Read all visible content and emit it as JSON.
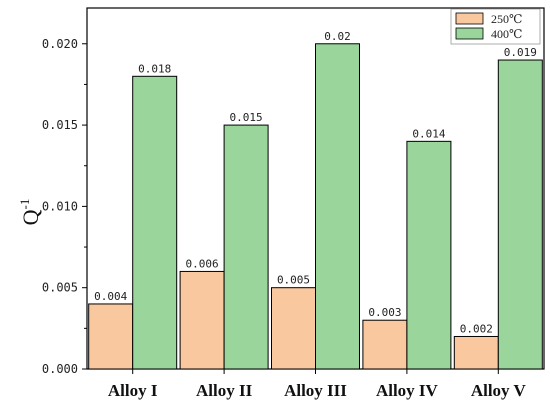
{
  "chart_data": {
    "type": "bar",
    "categories": [
      "Alloy I",
      "Alloy II",
      "Alloy III",
      "Alloy IV",
      "Alloy V"
    ],
    "series": [
      {
        "name": "250℃",
        "color": "#F9C89F",
        "values": [
          0.004,
          0.006,
          0.005,
          0.003,
          0.002
        ],
        "labels": [
          "0.004",
          "0.006",
          "0.005",
          "0.003",
          "0.002"
        ]
      },
      {
        "name": "400℃",
        "color": "#9AD59C",
        "values": [
          0.018,
          0.015,
          0.02,
          0.014,
          0.019
        ],
        "labels": [
          "0.018",
          "0.015",
          "0.02",
          "0.014",
          "0.019"
        ]
      }
    ],
    "ylabel": "Q",
    "ylabel_superscript": "-1",
    "ylim": [
      0,
      0.0222
    ],
    "yticks": [
      "0.000",
      "0.005",
      "0.010",
      "0.015",
      "0.020"
    ],
    "ytick_values": [
      0,
      0.005,
      0.01,
      0.015,
      0.02
    ],
    "legend_position": "top-right",
    "grid": false
  }
}
